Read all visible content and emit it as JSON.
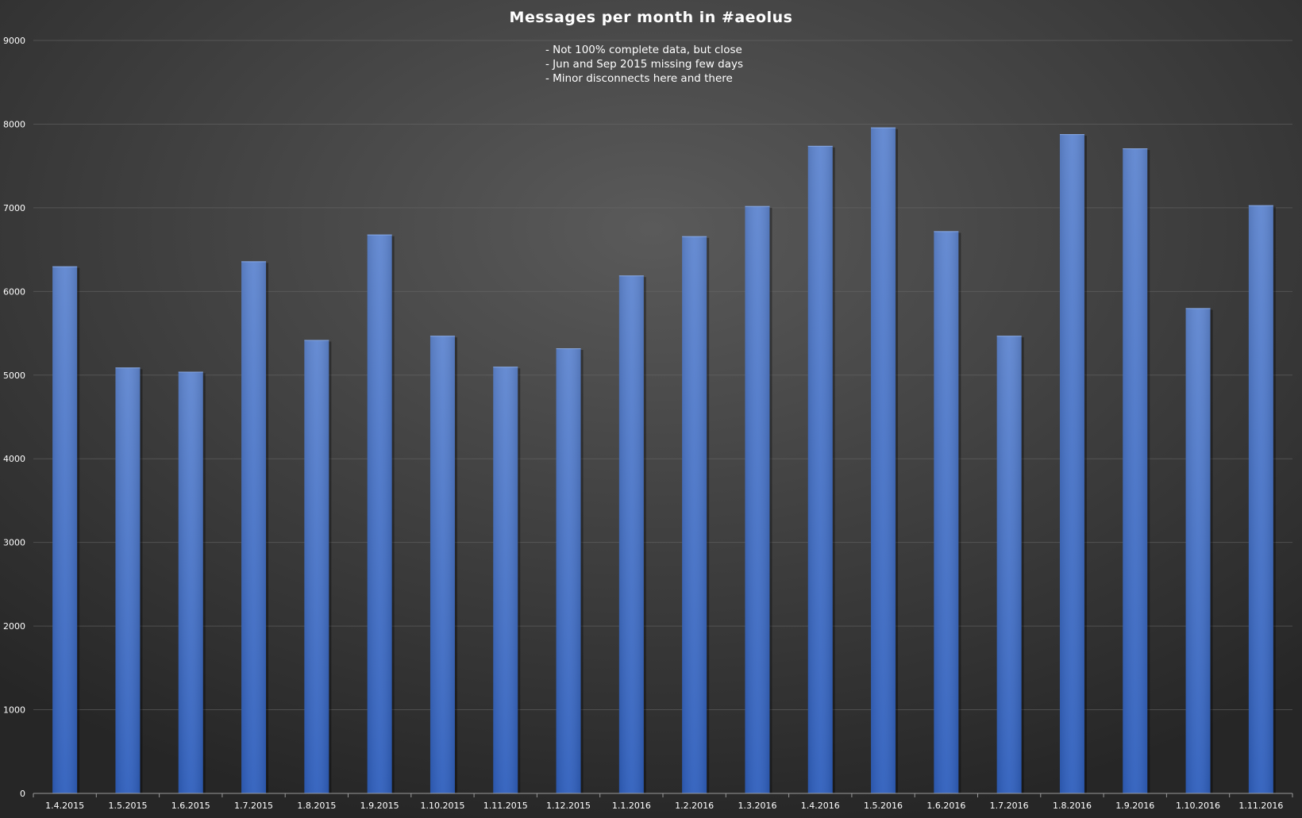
{
  "chart_data": {
    "type": "bar",
    "title": "Messages per month in #aeolus",
    "notes": [
      "- Not 100% complete data, but close",
      "- Jun and Sep 2015 missing few days",
      "- Minor disconnects here and there"
    ],
    "categories": [
      "1.4.2015",
      "1.5.2015",
      "1.6.2015",
      "1.7.2015",
      "1.8.2015",
      "1.9.2015",
      "1.10.2015",
      "1.11.2015",
      "1.12.2015",
      "1.1.2016",
      "1.2.2016",
      "1.3.2016",
      "1.4.2016",
      "1.5.2016",
      "1.6.2016",
      "1.7.2016",
      "1.8.2016",
      "1.9.2016",
      "1.10.2016",
      "1.11.2016"
    ],
    "values": [
      6300,
      5090,
      5040,
      6360,
      5420,
      6680,
      5470,
      5100,
      5320,
      6190,
      6660,
      7020,
      7740,
      7960,
      6720,
      5470,
      7880,
      7710,
      5800,
      7030
    ],
    "ylim": [
      0,
      9000
    ],
    "yticks": [
      0,
      1000,
      2000,
      3000,
      4000,
      5000,
      6000,
      7000,
      8000,
      9000
    ],
    "xlabel": "",
    "ylabel": "",
    "grid": true,
    "legend": "none",
    "colors": {
      "bar_top": "#5f86d0",
      "bar_bottom": "#2f5fbd",
      "background_center": "#5a5a5a",
      "background_edge": "#262626"
    }
  }
}
